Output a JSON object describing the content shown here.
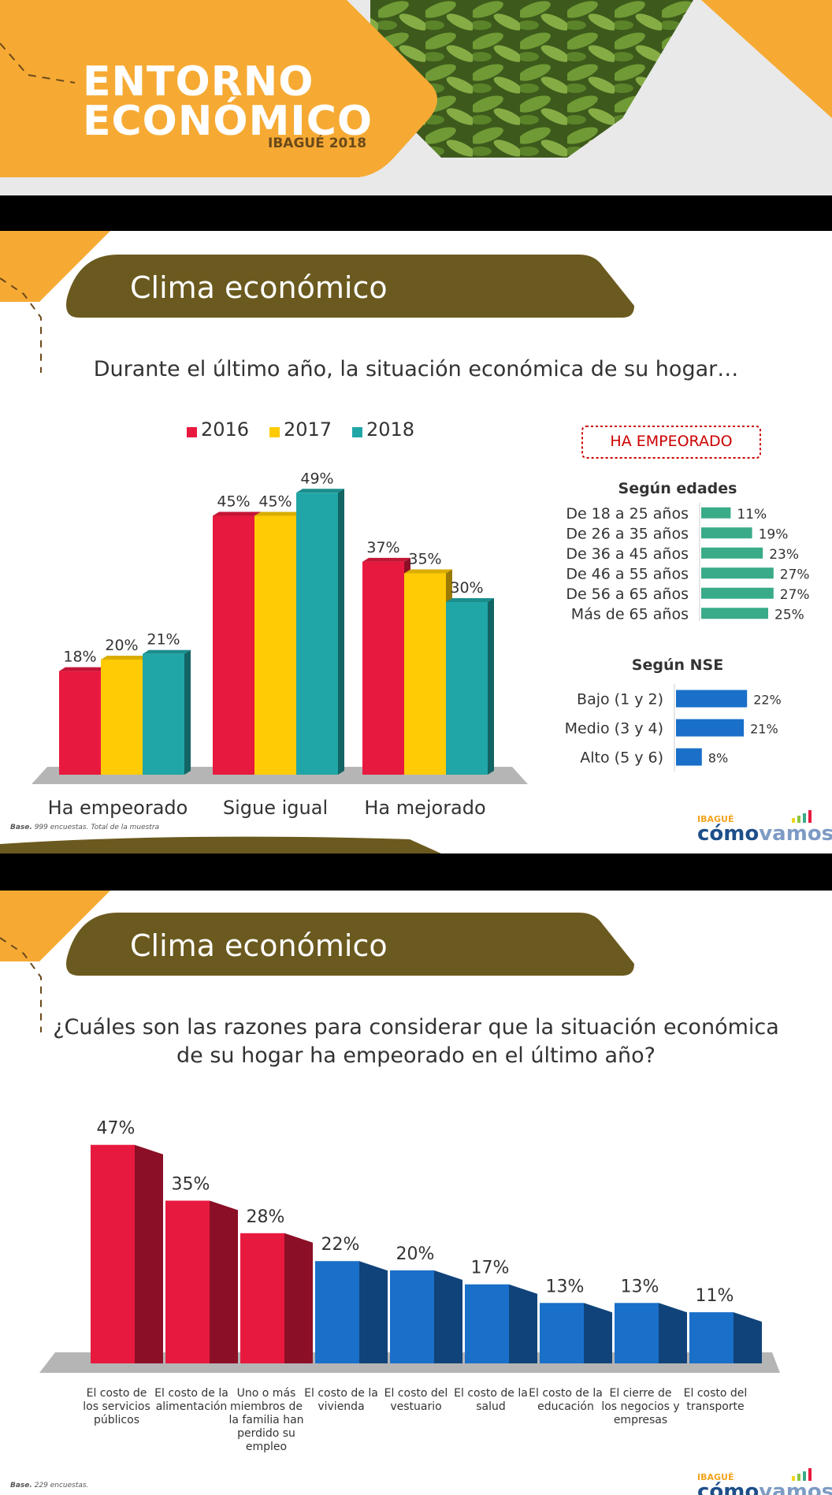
{
  "header": {
    "title_line1": "ENTORNO",
    "title_line2": "ECONÓMICO",
    "subtitle": "IBAGUÉ 2018"
  },
  "slide1": {
    "banner": "Clima económico",
    "question": "Durante el último año, la situación económica de su hogar…",
    "legend": [
      "2016",
      "2017",
      "2018"
    ],
    "side_box_title": "HA EMPEORADO",
    "ages_title": "Según edades",
    "nse_title": "Según NSE",
    "base_label": "Base.",
    "base_text": "999 encuestas. Total de la muestra",
    "logo_small": "IBAGUÉ",
    "logo_main": "cómo",
    "logo_main2": "vamos"
  },
  "slide2": {
    "banner": "Clima económico",
    "question_line1": "¿Cuáles son las razones para considerar que la situación económica",
    "question_line2": "de su hogar ha empeorado en el último año?",
    "base_label": "Base.",
    "base_text": "229 encuestas.",
    "logo_small": "IBAGUÉ",
    "logo_main": "cómo",
    "logo_main2": "vamos"
  },
  "colors": {
    "orange": "#f6aa34",
    "olive": "#6b5a1f",
    "red": "#e8193f",
    "yellow": "#ffcb05",
    "teal": "#20a6a6",
    "green": "#3aab89",
    "blue": "#1a6fc9"
  },
  "chart_data": [
    {
      "type": "bar",
      "title": "",
      "categories": [
        "Ha empeorado",
        "Sigue igual",
        "Ha mejorado"
      ],
      "series": [
        {
          "name": "2016",
          "values": [
            18,
            45,
            37
          ],
          "labels": [
            "18%",
            "45%",
            "37%"
          ]
        },
        {
          "name": "2017",
          "values": [
            20,
            45,
            35
          ],
          "labels": [
            "20%",
            "45%",
            "35%"
          ]
        },
        {
          "name": "2018",
          "values": [
            21,
            49,
            30
          ],
          "labels": [
            "21%",
            "49%",
            "30%"
          ]
        }
      ],
      "ylim": [
        0,
        55
      ]
    },
    {
      "type": "bar",
      "title": "Según edades",
      "orientation": "horizontal",
      "categories": [
        "De 18 a 25 años",
        "De 26 a 35 años",
        "De 36 a 45 años",
        "De 46 a 55 años",
        "De 56 a 65 años",
        "Más de 65 años"
      ],
      "values": [
        11,
        19,
        23,
        27,
        27,
        25
      ],
      "labels": [
        "11%",
        "19%",
        "23%",
        "27%",
        "27%",
        "25%"
      ]
    },
    {
      "type": "bar",
      "title": "Según NSE",
      "orientation": "horizontal",
      "categories": [
        "Bajo (1 y 2)",
        "Medio (3 y 4)",
        "Alto (5 y 6)"
      ],
      "values": [
        22,
        21,
        8
      ],
      "labels": [
        "22%",
        "21%",
        "8%"
      ]
    },
    {
      "type": "bar",
      "title": "",
      "categories": [
        [
          "El costo de",
          "los servicios",
          "públicos"
        ],
        [
          "El costo de la",
          "alimentación"
        ],
        [
          "Uno o más",
          "miembros de",
          "la familia han",
          "perdido su",
          "empleo"
        ],
        [
          "El costo de la",
          "vivienda"
        ],
        [
          "El costo del",
          "vestuario"
        ],
        [
          "El costo de la",
          "salud"
        ],
        [
          "El costo de la",
          "educación"
        ],
        [
          "El cierre de",
          "los negocios y",
          "empresas"
        ],
        [
          "El costo del",
          "transporte"
        ]
      ],
      "values": [
        47,
        35,
        28,
        22,
        20,
        17,
        13,
        13,
        11
      ],
      "labels": [
        "47%",
        "35%",
        "28%",
        "22%",
        "20%",
        "17%",
        "13%",
        "13%",
        "11%"
      ],
      "highlight": [
        true,
        true,
        true,
        false,
        false,
        false,
        false,
        false,
        false
      ]
    }
  ]
}
